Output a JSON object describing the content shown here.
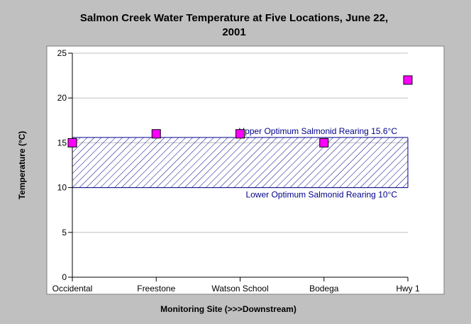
{
  "chart_data": {
    "type": "scatter",
    "title_line1": "Salmon Creek Water Temperature at Five Locations, June 22,",
    "title_line2": "2001",
    "xlabel": "Monitoring Site (>>>Downstream)",
    "ylabel": "Temperature (°C)",
    "ylim": [
      0,
      25
    ],
    "yticks": [
      0,
      5,
      10,
      15,
      20,
      25
    ],
    "categories": [
      "Occidental",
      "Freestone",
      "Watson School",
      "Bodega",
      "Hwy 1"
    ],
    "values": [
      15,
      16,
      16,
      15,
      22
    ],
    "marker_color": "#ff00ff",
    "grid": "horizontal",
    "optimum_band": {
      "lower": 10,
      "upper": 15.6,
      "upper_label": "Upper Optimum Salmonid Rearing 15.6°C",
      "lower_label": "Lower Optimum Salmonid Rearing 10°C",
      "color": "#00008b"
    }
  }
}
